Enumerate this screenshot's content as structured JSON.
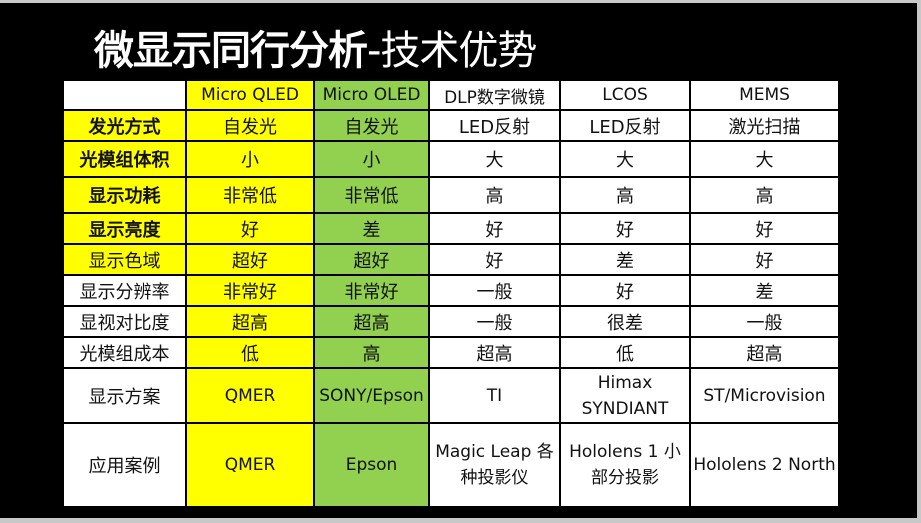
{
  "slide": {
    "title_strong": "微显示同行分析",
    "title_light": "-技术优势"
  },
  "table": {
    "columns": [
      "",
      "Micro QLED",
      "Micro OLED",
      "DLP数字微镜",
      "LCOS",
      "MEMS"
    ],
    "rows": [
      {
        "label": "发光方式",
        "cells": [
          "自发光",
          "自发光",
          "LED反射",
          "LED反射",
          "激光扫描"
        ]
      },
      {
        "label": "光模组体积",
        "cells": [
          "小",
          "小",
          "大",
          "大",
          "大"
        ]
      },
      {
        "label": "显示功耗",
        "cells": [
          "非常低",
          "非常低",
          "高",
          "高",
          "高"
        ]
      },
      {
        "label": "显示亮度",
        "cells": [
          "好",
          "差",
          "好",
          "好",
          "好"
        ]
      },
      {
        "label": "显示色域",
        "cells": [
          "超好",
          "超好",
          "好",
          "差",
          "好"
        ]
      },
      {
        "label": "显示分辨率",
        "cells": [
          "非常好",
          "非常好",
          "一般",
          "好",
          "差"
        ]
      },
      {
        "label": "显视对比度",
        "cells": [
          "超高",
          "超高",
          "一般",
          "很差",
          "一般"
        ]
      },
      {
        "label": "光模组成本",
        "cells": [
          "低",
          "高",
          "超高",
          "低",
          "超高"
        ]
      },
      {
        "label": "显示方案",
        "cells": [
          "QMER",
          "SONY/Epson",
          "TI",
          "Himax SYNDIANT",
          "ST/Microvision"
        ]
      },
      {
        "label": "应用案例",
        "cells": [
          "QMER",
          "Epson",
          "Magic Leap 各种投影仪",
          "Hololens 1 小部分投影",
          "Hololens 2 North"
        ]
      }
    ]
  },
  "colors": {
    "micro_qled": "#ffff00",
    "micro_oled": "#92d050",
    "background": "#000000"
  }
}
